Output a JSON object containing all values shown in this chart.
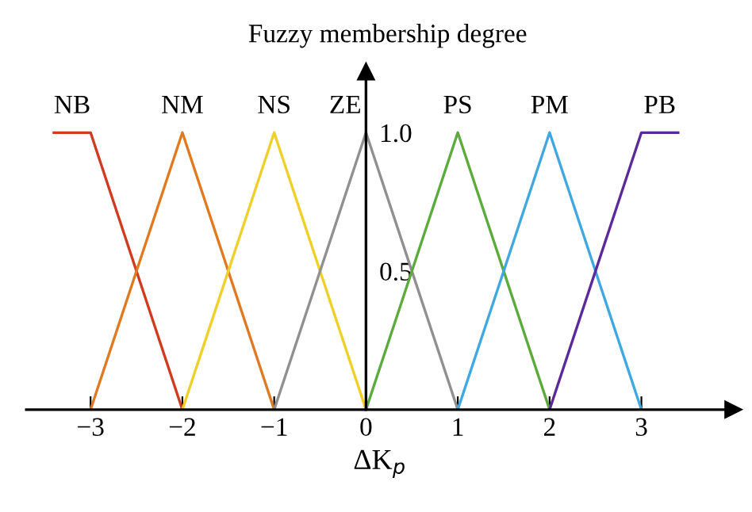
{
  "chart_data": {
    "type": "line",
    "title": "Fuzzy membership degree",
    "xlabel": "ΔK$_{p}$",
    "xlim": [
      -3.7,
      4.0
    ],
    "ylim": [
      0,
      1.22
    ],
    "xticks": [
      {
        "value": -3,
        "label": "−3"
      },
      {
        "value": -2,
        "label": "−2"
      },
      {
        "value": -1,
        "label": "−1"
      },
      0,
      1,
      2,
      3
    ],
    "yticks": [
      {
        "value": 0.5,
        "label": "0.5"
      },
      {
        "value": 1.0,
        "label": "1.0"
      }
    ],
    "grid": false,
    "legend": false,
    "marker": "none",
    "line_style": "solid",
    "series": [
      {
        "name": "NB",
        "color": "#d03a1e",
        "x": [
          -3.4,
          -3,
          -2
        ],
        "values": [
          1,
          1,
          0
        ]
      },
      {
        "name": "NM",
        "color": "#e07a22",
        "x": [
          -3,
          -2,
          -1
        ],
        "values": [
          0,
          1,
          0
        ]
      },
      {
        "name": "NS",
        "color": "#f0d028",
        "x": [
          -2,
          -1,
          0
        ],
        "values": [
          0,
          1,
          0
        ]
      },
      {
        "name": "ZE",
        "color": "#909090",
        "x": [
          -1,
          0,
          1
        ],
        "values": [
          0,
          1,
          0
        ]
      },
      {
        "name": "PS",
        "color": "#5aaa3c",
        "x": [
          0,
          1,
          2
        ],
        "values": [
          0,
          1,
          0
        ]
      },
      {
        "name": "PM",
        "color": "#3fa8e0",
        "x": [
          1,
          2,
          3
        ],
        "values": [
          0,
          1,
          0
        ]
      },
      {
        "name": "PB",
        "color": "#5a2a9a",
        "x": [
          2,
          3,
          3.4
        ],
        "values": [
          0,
          1,
          1
        ]
      }
    ]
  }
}
